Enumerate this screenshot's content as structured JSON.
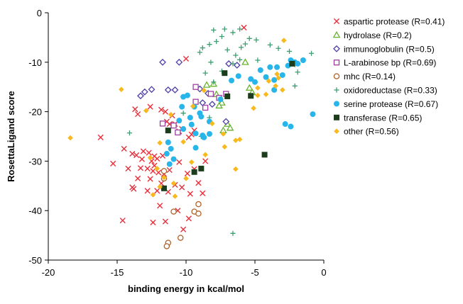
{
  "chart_data": {
    "type": "scatter",
    "xlabel": "binding energy in kcal/mol",
    "ylabel": "RosettaLigand score",
    "xlim": [
      -20,
      0
    ],
    "ylim": [
      -50,
      0
    ],
    "xticks": [
      "-20",
      "-15",
      "-10",
      "-5",
      "0"
    ],
    "yticks": [
      "0",
      "-10",
      "-20",
      "-30",
      "-40",
      "-50"
    ],
    "grid": false,
    "legend_position": "right",
    "series": [
      {
        "name": "aspartic protease (R=0.41)",
        "color": "#e8303c",
        "marker": "x",
        "points": [
          [
            -5.8,
            -3
          ],
          [
            -10,
            -9.3
          ],
          [
            -13.7,
            -19.5
          ],
          [
            -13.5,
            -20.5
          ],
          [
            -12.6,
            -19
          ],
          [
            -11.8,
            -19.6
          ],
          [
            -11.5,
            -20
          ],
          [
            -11,
            -20.8
          ],
          [
            -11.4,
            -22
          ],
          [
            -11.2,
            -22.5
          ],
          [
            -10.8,
            -22.5
          ],
          [
            -10.3,
            -23.5
          ],
          [
            -10.5,
            -24
          ],
          [
            -9.6,
            -24.6
          ],
          [
            -9.4,
            -23.8
          ],
          [
            -9.8,
            -25.2
          ],
          [
            -16.2,
            -25.2
          ],
          [
            -14.5,
            -27.5
          ],
          [
            -13.9,
            -28.5
          ],
          [
            -13.6,
            -28.8
          ],
          [
            -13.1,
            -28
          ],
          [
            -12.7,
            -28.3
          ],
          [
            -12.3,
            -29
          ],
          [
            -12.1,
            -29.5
          ],
          [
            -11.7,
            -28.9
          ],
          [
            -13.2,
            -29.6
          ],
          [
            -12.5,
            -30
          ],
          [
            -15.3,
            -30.5
          ],
          [
            -14.2,
            -31.5
          ],
          [
            -13.3,
            -31.4
          ],
          [
            -12.8,
            -31.5
          ],
          [
            -12.4,
            -32
          ],
          [
            -12,
            -32.3
          ],
          [
            -11.6,
            -32.6
          ],
          [
            -11.2,
            -31.8
          ],
          [
            -10.5,
            -30.2
          ],
          [
            -9.9,
            -32.5
          ],
          [
            -9.4,
            -31.6
          ],
          [
            -8.6,
            -30
          ],
          [
            -13.5,
            -33.5
          ],
          [
            -12.6,
            -33.6
          ],
          [
            -11.8,
            -34.5
          ],
          [
            -10.8,
            -34.8
          ],
          [
            -10.3,
            -35.3
          ],
          [
            -9.1,
            -34.4
          ],
          [
            -13.9,
            -35.3
          ],
          [
            -13.8,
            -35.6
          ],
          [
            -12.1,
            -36
          ],
          [
            -11.3,
            -36.2
          ],
          [
            -9.7,
            -36.6
          ],
          [
            -8.8,
            -36.5
          ],
          [
            -11.9,
            -39
          ],
          [
            -10.6,
            -40
          ],
          [
            -9.8,
            -41.6
          ],
          [
            -14.6,
            -42
          ],
          [
            -12.4,
            -42.4
          ],
          [
            -11.5,
            -42.2
          ],
          [
            -10.2,
            -43.8
          ],
          [
            -12.8,
            -36
          ],
          [
            -12.3,
            -30.9
          ]
        ]
      },
      {
        "name": "hydrolase (R=0.2)",
        "color": "#66b32e",
        "marker": "triangle",
        "points": [
          [
            -5.7,
            -10
          ],
          [
            -8.5,
            -14.6
          ],
          [
            -8,
            -14.4
          ],
          [
            -5.4,
            -15.2
          ],
          [
            -5.2,
            -16.1
          ],
          [
            -7.8,
            -16.5
          ],
          [
            -7.4,
            -18.2
          ],
          [
            -7.6,
            -18.8
          ],
          [
            -7,
            -22.5
          ],
          [
            -6.8,
            -23.3
          ],
          [
            -7.3,
            -23.8
          ]
        ]
      },
      {
        "name": "immunoglobulin (R=0.5)",
        "color": "#4e3fa6",
        "marker": "diamond",
        "points": [
          [
            -11.7,
            -10
          ],
          [
            -10.5,
            -10
          ],
          [
            -6.9,
            -10.3
          ],
          [
            -6.3,
            -10.6
          ],
          [
            -13,
            -16
          ],
          [
            -12.5,
            -15.5
          ],
          [
            -11.3,
            -15.6
          ],
          [
            -10.8,
            -15.6
          ],
          [
            -9,
            -15.4
          ],
          [
            -8.4,
            -16.3
          ],
          [
            -8.8,
            -18.2
          ],
          [
            -8.1,
            -18.5
          ],
          [
            -13.3,
            -16.8
          ],
          [
            -7.1,
            -22
          ]
        ]
      },
      {
        "name": "L-arabinose bp (R=0.69)",
        "color": "#9f3fa2",
        "marker": "square",
        "points": [
          [
            -9.3,
            -15
          ],
          [
            -8.2,
            -16.4
          ],
          [
            -7.6,
            -17.2
          ],
          [
            -7.1,
            -16.4
          ],
          [
            -9.3,
            -18
          ],
          [
            -8.6,
            -19.2
          ],
          [
            -10.9,
            -22.8
          ],
          [
            -10.6,
            -24.2
          ],
          [
            -11.7,
            -22.4
          ]
        ]
      },
      {
        "name": "mhc (R=0.14)",
        "color": "#b0632b",
        "marker": "circle-open",
        "points": [
          [
            -11.6,
            -32
          ],
          [
            -11.6,
            -33.5
          ],
          [
            -10.9,
            -40.2
          ],
          [
            -9.4,
            -40.2
          ],
          [
            -9.1,
            -38.7
          ],
          [
            -9.1,
            -40.6
          ],
          [
            -10.4,
            -45.5
          ],
          [
            -11.3,
            -46.5
          ],
          [
            -11.4,
            -47.2
          ]
        ]
      },
      {
        "name": "oxidoreductase (R=0.33)",
        "color": "#3e9e71",
        "marker": "plus",
        "points": [
          [
            -8,
            -3.5
          ],
          [
            -7.4,
            -4.8
          ],
          [
            -7.2,
            -3.3
          ],
          [
            -6.1,
            -3.3
          ],
          [
            -6.6,
            -4
          ],
          [
            -5.7,
            -6.3
          ],
          [
            -6,
            -7
          ],
          [
            -6.4,
            -8.6
          ],
          [
            -6.1,
            -9.5
          ],
          [
            -4.8,
            -9.6
          ],
          [
            -6.6,
            -10.3
          ],
          [
            -5.4,
            -5.2
          ],
          [
            -4.9,
            -5.5
          ],
          [
            -3.9,
            -6.5
          ],
          [
            -3.3,
            -7.2
          ],
          [
            -2.5,
            -7.8
          ],
          [
            -2.1,
            -10.5
          ],
          [
            -1.9,
            -12
          ],
          [
            -0.9,
            -8.2
          ],
          [
            -7.8,
            -5.8
          ],
          [
            -8.3,
            -6.4
          ],
          [
            -8.8,
            -7.1
          ],
          [
            -9,
            -8
          ],
          [
            -7,
            -7.5
          ],
          [
            -8.2,
            -10
          ],
          [
            -7.4,
            -11.8
          ],
          [
            -8.6,
            -12.2
          ],
          [
            -8,
            -14
          ],
          [
            -2.1,
            -14.8
          ],
          [
            -14.1,
            -24.3
          ],
          [
            -6.6,
            -44.6
          ],
          [
            -8.9,
            -25
          ],
          [
            -8.3,
            -21.2
          ],
          [
            -10.2,
            -20.3
          ]
        ]
      },
      {
        "name": "serine protease (R=0.67)",
        "color": "#28b5ea",
        "marker": "circle",
        "points": [
          [
            -6.7,
            -13.7
          ],
          [
            -7.5,
            -17.5
          ],
          [
            -6.2,
            -12.8
          ],
          [
            -5.3,
            -13.4
          ],
          [
            -4.2,
            -13
          ],
          [
            -3.6,
            -13.6
          ],
          [
            -3,
            -12.6
          ],
          [
            -2.1,
            -10
          ],
          [
            -1.9,
            -10.3
          ],
          [
            -2.6,
            -10.7
          ],
          [
            -1.5,
            -9.6
          ],
          [
            -2.4,
            -9.6
          ],
          [
            -4.6,
            -11.6
          ],
          [
            -3.9,
            -11
          ],
          [
            -3.4,
            -11
          ],
          [
            -5,
            -14
          ],
          [
            -9.9,
            -16.7
          ],
          [
            -10.2,
            -17
          ],
          [
            -9.4,
            -19
          ],
          [
            -10.3,
            -19
          ],
          [
            -9,
            -20.3
          ],
          [
            -8.9,
            -21
          ],
          [
            -9.7,
            -21.2
          ],
          [
            -10.5,
            -21.8
          ],
          [
            -9.6,
            -22.6
          ],
          [
            -8.3,
            -22
          ],
          [
            -10.2,
            -23.5
          ],
          [
            -9.3,
            -24.4
          ],
          [
            -8.8,
            -24.8
          ],
          [
            -8.3,
            -24.5
          ],
          [
            -8.7,
            -25.2
          ],
          [
            -11.3,
            -26.2
          ],
          [
            -11.1,
            -27.5
          ],
          [
            -11.4,
            -28.5
          ],
          [
            -10.9,
            -29.6
          ],
          [
            -11.2,
            -30.6
          ],
          [
            -9.3,
            -27.3
          ],
          [
            -2.8,
            -22.5
          ],
          [
            -2.4,
            -23
          ],
          [
            -0.8,
            -20.5
          ],
          [
            -3.6,
            -15.6
          ]
        ]
      },
      {
        "name": "transferase (R=0.65)",
        "color": "#1c3d1c",
        "marker": "square-filled",
        "points": [
          [
            -7.2,
            -12.2
          ],
          [
            -2.3,
            -10.3
          ],
          [
            -5.3,
            -16.8
          ],
          [
            -7,
            -16.9
          ],
          [
            -11.3,
            -23.8
          ],
          [
            -9.4,
            -32.2
          ],
          [
            -8.9,
            -31.5
          ],
          [
            -11.6,
            -35.5
          ],
          [
            -4.3,
            -28.7
          ]
        ]
      },
      {
        "name": "other (R=0.56)",
        "color": "#f7b91d",
        "marker": "diamond-filled",
        "points": [
          [
            -18.4,
            -25.3
          ],
          [
            -14.7,
            -15.5
          ],
          [
            -2.9,
            -5.6
          ],
          [
            -3.3,
            -13.2
          ],
          [
            -4.8,
            -16.7
          ],
          [
            -5.1,
            -19.3
          ],
          [
            -8.7,
            -15.7
          ],
          [
            -9.5,
            -18.9
          ],
          [
            -8.1,
            -22.4
          ],
          [
            -7.3,
            -24.5
          ],
          [
            -6.1,
            -25.6
          ],
          [
            -10.2,
            -26.1
          ],
          [
            -11.9,
            -26.3
          ],
          [
            -12.6,
            -29.3
          ],
          [
            -12.1,
            -31.5
          ],
          [
            -11.6,
            -33.3
          ],
          [
            -10.9,
            -34.5
          ],
          [
            -11.9,
            -35.2
          ],
          [
            -12.4,
            -36.8
          ],
          [
            -10.8,
            -37.1
          ],
          [
            -10,
            -33.5
          ],
          [
            -9.6,
            -30.2
          ],
          [
            -8.6,
            -28.7
          ],
          [
            -7.2,
            -27.1
          ],
          [
            -6.4,
            -25.8
          ],
          [
            -6.4,
            -31.6
          ],
          [
            -12.9,
            -19.8
          ],
          [
            -11.1,
            -20.6
          ],
          [
            -4.2,
            -16.5
          ],
          [
            -4.8,
            -15.2
          ],
          [
            -3.5,
            -14.8
          ],
          [
            -3,
            -15.6
          ],
          [
            -3.4,
            -12.4
          ],
          [
            -4,
            -13.8
          ]
        ]
      }
    ]
  }
}
